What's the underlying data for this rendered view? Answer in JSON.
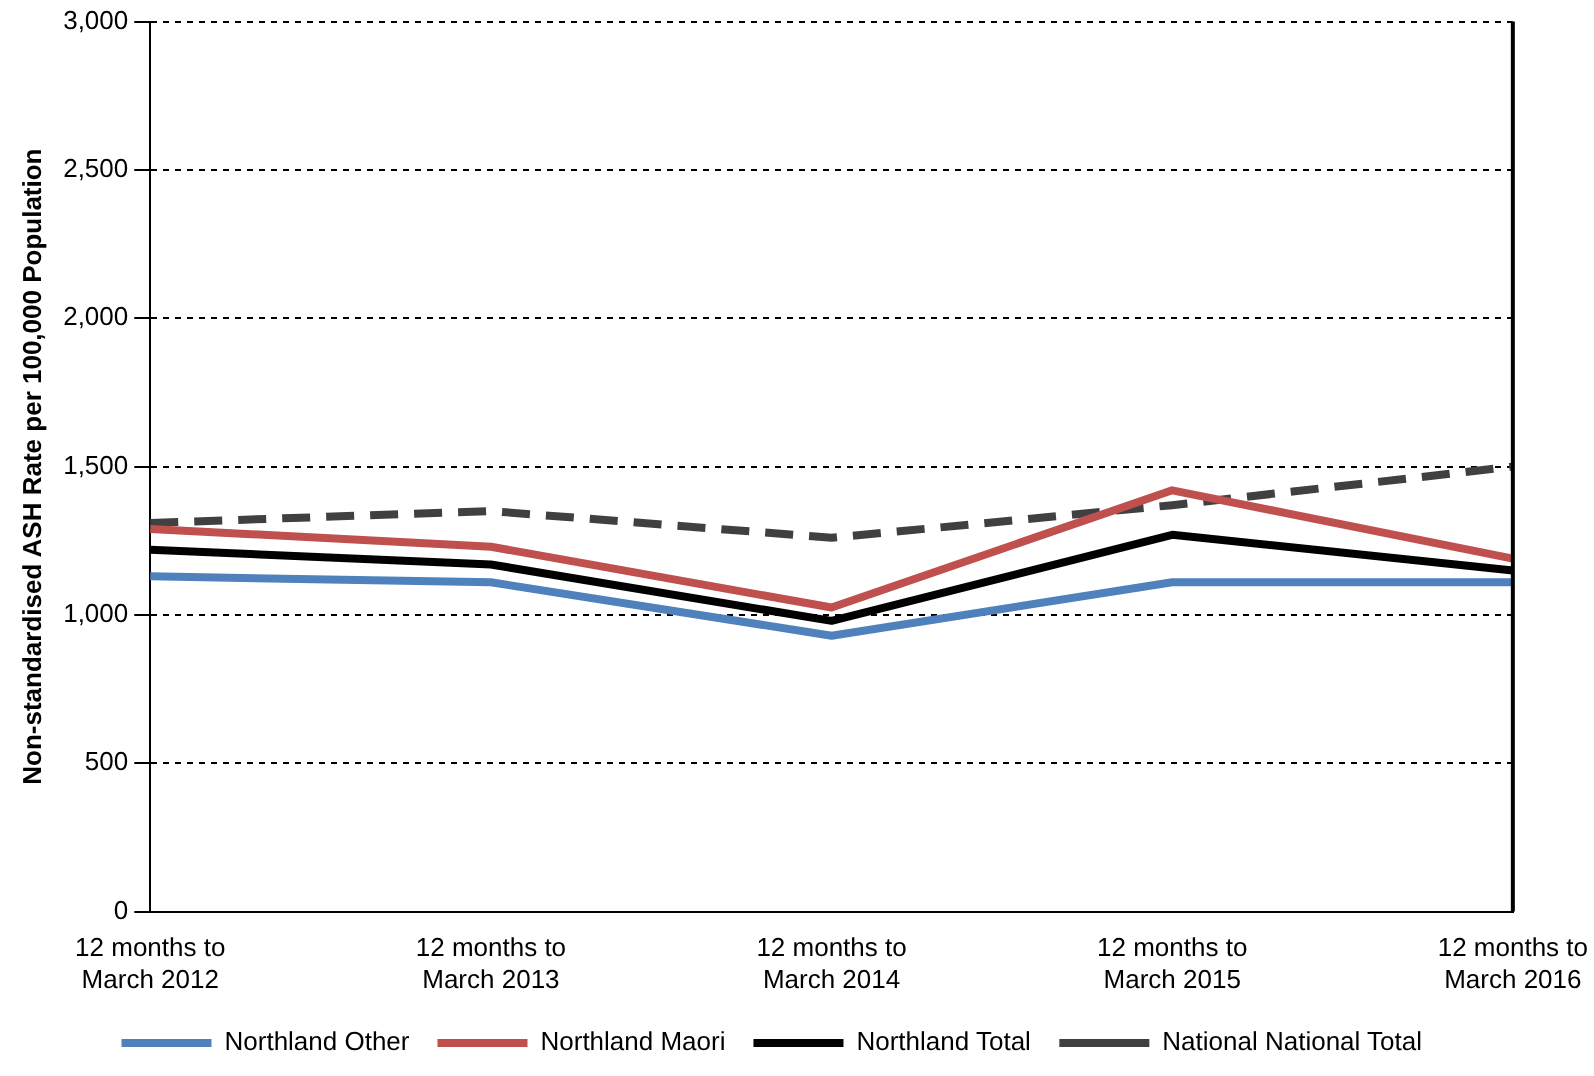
{
  "chart_data": {
    "type": "line",
    "ylabel": "Non-standardised ASH Rate per 100,000 Population",
    "categories": [
      "12 months to March 2012",
      "12 months to March 2013",
      "12 months to March 2014",
      "12 months to March 2015",
      "12 months to March 2016"
    ],
    "series": [
      {
        "name": "Northland Other",
        "color": "#4f81bd",
        "values": [
          1130,
          1110,
          930,
          1110,
          1110
        ]
      },
      {
        "name": "Northland Maori",
        "color": "#c0504d",
        "values": [
          1290,
          1230,
          1025,
          1420,
          1190
        ]
      },
      {
        "name": "Northland Total",
        "color": "#000000",
        "values": [
          1220,
          1170,
          980,
          1270,
          1150
        ]
      },
      {
        "name": "National National Total",
        "color": "#404040",
        "values": [
          1310,
          1350,
          1260,
          1370,
          1500
        ],
        "line_style": "dashed"
      }
    ],
    "ylim": [
      0,
      3000
    ],
    "yticks": [
      0,
      500,
      {
        "value": 1000,
        "label": "1,000"
      },
      {
        "value": 1500,
        "label": "1,500"
      },
      {
        "value": 2000,
        "label": "2,000"
      },
      {
        "value": 2500,
        "label": "2,500"
      },
      {
        "value": 3000,
        "label": "3,000"
      }
    ],
    "grid": "y",
    "legend": "bottom",
    "marker": "none"
  }
}
